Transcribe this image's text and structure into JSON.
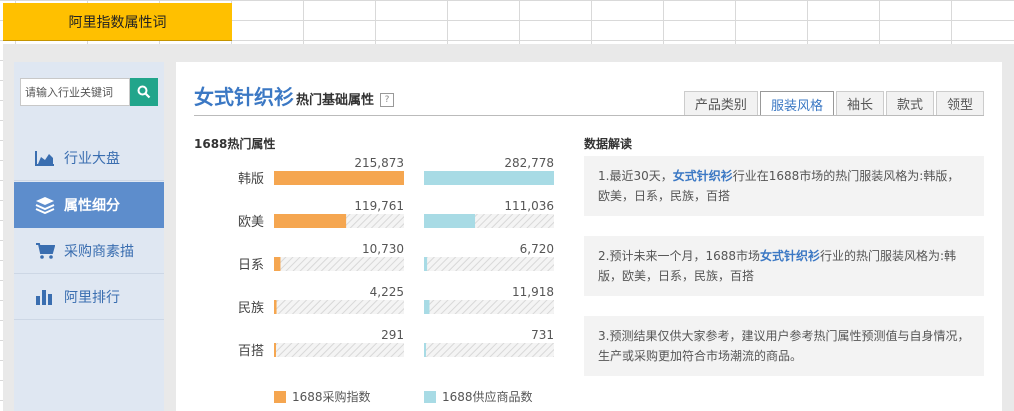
{
  "sheet_tab": "阿里指数属性词",
  "search": {
    "placeholder": "请输入行业关键词"
  },
  "colors": {
    "accent": "#3b78c4",
    "tab_yellow": "#ffc000",
    "series_a": "#f5a650",
    "series_b": "#a8dbe5",
    "search_btn": "#21a58b",
    "nav_active": "#5d8dcc"
  },
  "sidebar": {
    "items": [
      {
        "label": "行业大盘",
        "icon": "area-chart-icon",
        "active": false
      },
      {
        "label": "属性细分",
        "icon": "layers-icon",
        "active": true
      },
      {
        "label": "采购商素描",
        "icon": "cart-icon",
        "active": false
      },
      {
        "label": "阿里排行",
        "icon": "bar-chart-icon",
        "active": false
      }
    ]
  },
  "header": {
    "title": "女式针织衫",
    "subtitle": "热门基础属性",
    "help": "?",
    "tabs": [
      {
        "label": "产品类别",
        "active": false
      },
      {
        "label": "服装风格",
        "active": true
      },
      {
        "label": "袖长",
        "active": false
      },
      {
        "label": "款式",
        "active": false
      },
      {
        "label": "领型",
        "active": false
      }
    ]
  },
  "chart_title": "1688热门属性",
  "chart_data": {
    "type": "bar",
    "categories": [
      "韩版",
      "欧美",
      "日系",
      "民族",
      "百搭"
    ],
    "series": [
      {
        "name": "1688采购指数",
        "values": [
          215873,
          119761,
          10730,
          4225,
          291
        ],
        "labels": [
          "215,873",
          "119,761",
          "10,730",
          "4,225",
          "291"
        ]
      },
      {
        "name": "1688供应商品数",
        "values": [
          282778,
          111036,
          6720,
          11918,
          731
        ],
        "labels": [
          "282,778",
          "111,036",
          "6,720",
          "11,918",
          "731"
        ]
      }
    ]
  },
  "interpretation": {
    "title": "数据解读",
    "notes": [
      {
        "before": "1.最近30天，",
        "highlight": "女式针织衫",
        "after": "行业在1688市场的热门服装风格为:韩版，欧美，日系，民族，百搭"
      },
      {
        "before": "2.预计未来一个月，1688市场",
        "highlight": "女式针织衫",
        "after": "行业的热门服装风格为:韩版，欧美，日系，民族，百搭"
      },
      {
        "before": "3.预测结果仅供大家参考，建议用户参考热门属性预测值与自身情况，生产或采购更加符合市场潮流的商品。",
        "highlight": "",
        "after": ""
      }
    ]
  }
}
